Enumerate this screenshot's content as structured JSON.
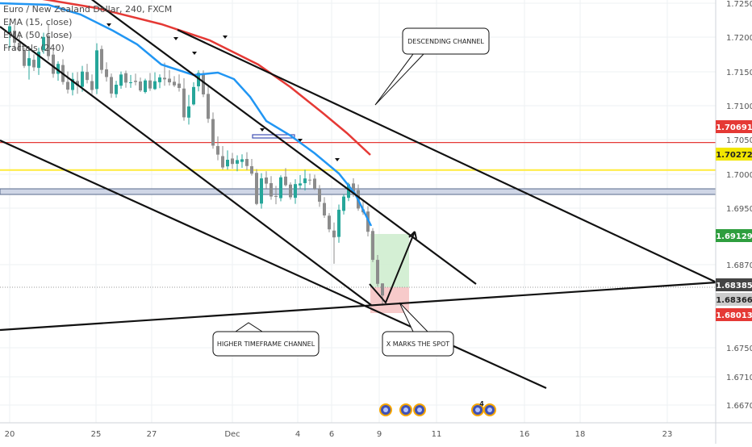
{
  "chart_data": {
    "type": "candlestick",
    "title": "Euro / New Zealand Dollar, 240, FXCM",
    "indicators": [
      "EMA (15, close)",
      "EMA (50, close)",
      "Fractals (240)"
    ],
    "x_tick_labels": [
      "20",
      "25",
      "27",
      "Dec",
      "4",
      "6",
      "9",
      "11",
      "16",
      "18",
      "23"
    ],
    "y_tick_labels": [
      "1.72500",
      "1.72000",
      "1.71500",
      "1.71000",
      "1.70500",
      "1.70000",
      "1.69500",
      "1.68700",
      "1.67500",
      "1.67100",
      "1.66700"
    ],
    "ylim": [
      1.66433,
      1.72856
    ],
    "candles": [
      {
        "o": 1.72356,
        "h": 1.72499,
        "l": 1.72128,
        "c": 1.72457
      },
      {
        "o": 1.72391,
        "h": 1.72474,
        "l": 1.72098,
        "c": 1.72208
      },
      {
        "o": 1.72206,
        "h": 1.72352,
        "l": 1.72071,
        "c": 1.72093
      },
      {
        "o": 1.72095,
        "h": 1.72137,
        "l": 1.71824,
        "c": 1.71855
      },
      {
        "o": 1.71855,
        "h": 1.72119,
        "l": 1.71647,
        "c": 1.71972
      },
      {
        "o": 1.71948,
        "h": 1.72032,
        "l": 1.71778,
        "c": 1.71833
      },
      {
        "o": 1.71825,
        "h": 1.72132,
        "l": 1.71717,
        "c": 1.72069
      },
      {
        "o": 1.72094,
        "h": 1.72359,
        "l": 1.72039,
        "c": 1.72294
      },
      {
        "o": 1.72313,
        "h": 1.72498,
        "l": 1.71938,
        "c": 1.72003
      },
      {
        "o": 1.72026,
        "h": 1.72082,
        "l": 1.71675,
        "c": 1.71735
      },
      {
        "o": 1.71735,
        "h": 1.71925,
        "l": 1.71631,
        "c": 1.71885
      },
      {
        "o": 1.71868,
        "h": 1.71955,
        "l": 1.71571,
        "c": 1.71611
      },
      {
        "o": 1.71612,
        "h": 1.71769,
        "l": 1.71436,
        "c": 1.71495
      },
      {
        "o": 1.71489,
        "h": 1.71751,
        "l": 1.71406,
        "c": 1.71657
      },
      {
        "o": 1.71625,
        "h": 1.71761,
        "l": 1.71431,
        "c": 1.71559
      },
      {
        "o": 1.71538,
        "h": 1.71856,
        "l": 1.71462,
        "c": 1.71769
      },
      {
        "o": 1.71762,
        "h": 1.71886,
        "l": 1.71589,
        "c": 1.71641
      },
      {
        "o": 1.71624,
        "h": 1.71725,
        "l": 1.71425,
        "c": 1.71489
      },
      {
        "o": 1.71504,
        "h": 1.72198,
        "l": 1.71426,
        "c": 1.72091
      },
      {
        "o": 1.72111,
        "h": 1.72163,
        "l": 1.71737,
        "c": 1.71794
      },
      {
        "o": 1.71803,
        "h": 1.71909,
        "l": 1.71616,
        "c": 1.71686
      },
      {
        "o": 1.71686,
        "h": 1.71739,
        "l": 1.71369,
        "c": 1.71435
      },
      {
        "o": 1.71426,
        "h": 1.71629,
        "l": 1.71371,
        "c": 1.71569
      },
      {
        "o": 1.71554,
        "h": 1.71769,
        "l": 1.71508,
        "c": 1.71724
      },
      {
        "o": 1.71744,
        "h": 1.71784,
        "l": 1.71523,
        "c": 1.71601
      },
      {
        "o": 1.71593,
        "h": 1.71718,
        "l": 1.71521,
        "c": 1.71606
      },
      {
        "o": 1.71629,
        "h": 1.71737,
        "l": 1.7156,
        "c": 1.71611
      },
      {
        "o": 1.71618,
        "h": 1.71678,
        "l": 1.71458,
        "c": 1.71482
      },
      {
        "o": 1.71458,
        "h": 1.71661,
        "l": 1.71436,
        "c": 1.71634
      },
      {
        "o": 1.71634,
        "h": 1.71746,
        "l": 1.71476,
        "c": 1.71512
      },
      {
        "o": 1.71503,
        "h": 1.71758,
        "l": 1.7149,
        "c": 1.71622
      },
      {
        "o": 1.71607,
        "h": 1.71727,
        "l": 1.71517,
        "c": 1.7168
      },
      {
        "o": 1.71674,
        "h": 1.71904,
        "l": 1.71553,
        "c": 1.71651
      },
      {
        "o": 1.71661,
        "h": 1.71792,
        "l": 1.71557,
        "c": 1.71605
      },
      {
        "o": 1.71614,
        "h": 1.71699,
        "l": 1.71533,
        "c": 1.71559
      },
      {
        "o": 1.71586,
        "h": 1.71725,
        "l": 1.71464,
        "c": 1.7152
      },
      {
        "o": 1.71511,
        "h": 1.71667,
        "l": 1.71022,
        "c": 1.71074
      },
      {
        "o": 1.71069,
        "h": 1.71414,
        "l": 1.70964,
        "c": 1.71239
      },
      {
        "o": 1.7127,
        "h": 1.71608,
        "l": 1.71255,
        "c": 1.71534
      },
      {
        "o": 1.71545,
        "h": 1.71788,
        "l": 1.71468,
        "c": 1.71749
      },
      {
        "o": 1.71725,
        "h": 1.71786,
        "l": 1.7138,
        "c": 1.71422
      },
      {
        "o": 1.71429,
        "h": 1.71539,
        "l": 1.7099,
        "c": 1.71051
      },
      {
        "o": 1.71047,
        "h": 1.71147,
        "l": 1.70597,
        "c": 1.70644
      },
      {
        "o": 1.70637,
        "h": 1.70783,
        "l": 1.70421,
        "c": 1.70507
      },
      {
        "o": 1.70484,
        "h": 1.70637,
        "l": 1.70279,
        "c": 1.70312
      },
      {
        "o": 1.70329,
        "h": 1.70571,
        "l": 1.70278,
        "c": 1.70429
      },
      {
        "o": 1.70448,
        "h": 1.70533,
        "l": 1.70294,
        "c": 1.70365
      },
      {
        "o": 1.70369,
        "h": 1.70497,
        "l": 1.70255,
        "c": 1.70424
      },
      {
        "o": 1.70397,
        "h": 1.70512,
        "l": 1.70307,
        "c": 1.70436
      },
      {
        "o": 1.70441,
        "h": 1.70544,
        "l": 1.7027,
        "c": 1.70334
      },
      {
        "o": 1.70331,
        "h": 1.70441,
        "l": 1.70189,
        "c": 1.70218
      },
      {
        "o": 1.7023,
        "h": 1.70287,
        "l": 1.69739,
        "c": 1.69758
      },
      {
        "o": 1.69763,
        "h": 1.70225,
        "l": 1.69686,
        "c": 1.70146
      },
      {
        "o": 1.70159,
        "h": 1.70254,
        "l": 1.69991,
        "c": 1.70066
      },
      {
        "o": 1.70074,
        "h": 1.70181,
        "l": 1.69822,
        "c": 1.69871
      },
      {
        "o": 1.69878,
        "h": 1.70032,
        "l": 1.69754,
        "c": 1.69865
      },
      {
        "o": 1.69846,
        "h": 1.70193,
        "l": 1.69797,
        "c": 1.70162
      },
      {
        "o": 1.70173,
        "h": 1.70302,
        "l": 1.70023,
        "c": 1.70043
      },
      {
        "o": 1.70052,
        "h": 1.70086,
        "l": 1.69824,
        "c": 1.69859
      },
      {
        "o": 1.69851,
        "h": 1.70133,
        "l": 1.6976,
        "c": 1.70059
      },
      {
        "o": 1.70039,
        "h": 1.70196,
        "l": 1.6998,
        "c": 1.70069
      },
      {
        "o": 1.70074,
        "h": 1.70277,
        "l": 1.69962,
        "c": 1.70145
      },
      {
        "o": 1.70126,
        "h": 1.70218,
        "l": 1.70048,
        "c": 1.70115
      },
      {
        "o": 1.70142,
        "h": 1.70202,
        "l": 1.69969,
        "c": 1.69989
      },
      {
        "o": 1.69984,
        "h": 1.70044,
        "l": 1.69714,
        "c": 1.69792
      },
      {
        "o": 1.69772,
        "h": 1.69861,
        "l": 1.69547,
        "c": 1.69583
      },
      {
        "o": 1.69579,
        "h": 1.69619,
        "l": 1.69328,
        "c": 1.69372
      },
      {
        "o": 1.69353,
        "h": 1.69476,
        "l": 1.6885,
        "c": 1.6925
      },
      {
        "o": 1.69257,
        "h": 1.69749,
        "l": 1.69168,
        "c": 1.6967
      },
      {
        "o": 1.69653,
        "h": 1.69906,
        "l": 1.69597,
        "c": 1.6987
      },
      {
        "o": 1.69851,
        "h": 1.70081,
        "l": 1.69801,
        "c": 1.70057
      },
      {
        "o": 1.70069,
        "h": 1.70148,
        "l": 1.69866,
        "c": 1.69947
      },
      {
        "o": 1.69968,
        "h": 1.70054,
        "l": 1.69654,
        "c": 1.69688
      },
      {
        "o": 1.69675,
        "h": 1.69812,
        "l": 1.69592,
        "c": 1.6963
      },
      {
        "o": 1.69643,
        "h": 1.69726,
        "l": 1.69264,
        "c": 1.69335
      },
      {
        "o": 1.69347,
        "h": 1.6939,
        "l": 1.68876,
        "c": 1.68909
      },
      {
        "o": 1.68908,
        "h": 1.68983,
        "l": 1.68506,
        "c": 1.68544
      },
      {
        "o": 1.68551,
        "h": 1.68552,
        "l": 1.68213,
        "c": 1.68366
      }
    ],
    "ema15": [
      [
        1.72357,
        1.72224
      ],
      [
        1.70884,
        1.71472
      ],
      [
        1.67693,
        1.70146
      ],
      [
        1.65958,
        1.69308
      ]
    ],
    "ema50": [
      [
        1.73147,
        1.72716
      ],
      [
        1.7133,
        1.72008
      ],
      [
        1.69271,
        1.70909
      ],
      [
        1.68166,
        1.70285
      ]
    ],
    "horizontal_levels": [
      {
        "label": "1.70691",
        "price": 1.70691,
        "color": "#e53935"
      },
      {
        "label": "1.70272",
        "price": 1.70272,
        "color": "#ffeb3b"
      }
    ],
    "price_tags": [
      {
        "label": "1.70691",
        "color": "#e53935"
      },
      {
        "label": "1.70272",
        "color": "#f2e600"
      },
      {
        "label": "1.69129",
        "color": "#2e9e3e"
      },
      {
        "label": "1.68385",
        "color": "#444444"
      },
      {
        "label": "1.68366",
        "color": "#cccccc"
      },
      {
        "label": "1.68013",
        "color": "#e53935"
      }
    ],
    "annotations": [
      {
        "text": "DESCENDING CHANNEL"
      },
      {
        "text": "HIGHER TIMEFRAME CHANNEL"
      },
      {
        "text": "X MARKS THE SPOT"
      }
    ],
    "event_badge_count": "4",
    "colors": {
      "up": "#26a69a",
      "down": "#8c8c8c",
      "ema15": "#2196f3",
      "ema50": "#e53935",
      "grid": "#eef0f3"
    }
  }
}
